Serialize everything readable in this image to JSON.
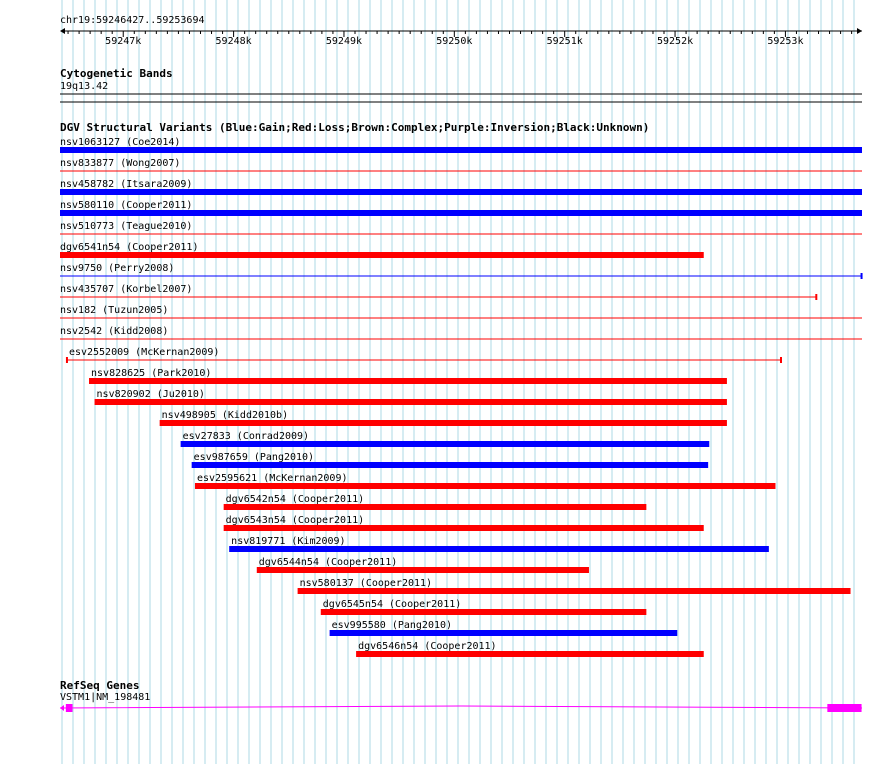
{
  "ruler": {
    "locus": "chr19:59246427..59253694",
    "start": 59246427,
    "end": 59253694,
    "ticks": [
      {
        "pos": 59247000,
        "label": "59247k"
      },
      {
        "pos": 59248000,
        "label": "59248k"
      },
      {
        "pos": 59249000,
        "label": "59249k"
      },
      {
        "pos": 59250000,
        "label": "59250k"
      },
      {
        "pos": 59251000,
        "label": "59251k"
      },
      {
        "pos": 59252000,
        "label": "59252k"
      },
      {
        "pos": 59253000,
        "label": "59253k"
      }
    ]
  },
  "colors": {
    "gain": "#0000ff",
    "loss": "#ff0000",
    "grid": "#add8e6",
    "gene": "#ff00ff",
    "band": "#000000"
  },
  "cytoband": {
    "title": "Cytogenetic Bands",
    "band": "19q13.42"
  },
  "dgv": {
    "title": "DGV Structural Variants (Blue:Gain;Red:Loss;Brown:Complex;Purple:Inversion;Black:Unknown)",
    "variants": [
      {
        "label": "nsv1063127 (Coe2014)",
        "type": "gain",
        "style": "thick",
        "start": 59246420,
        "end": 59253700
      },
      {
        "label": "nsv833877 (Wong2007)",
        "type": "loss",
        "style": "thin",
        "start": 59246420,
        "end": 59253700
      },
      {
        "label": "nsv458782 (Itsara2009)",
        "type": "gain",
        "style": "thick",
        "start": 59246420,
        "end": 59253700
      },
      {
        "label": "nsv580110 (Cooper2011)",
        "type": "gain",
        "style": "thick",
        "start": 59246420,
        "end": 59253700
      },
      {
        "label": "nsv510773 (Teague2010)",
        "type": "loss",
        "style": "thin",
        "start": 59246420,
        "end": 59253700
      },
      {
        "label": "dgv6541n54 (Cooper2011)",
        "type": "loss",
        "style": "thick",
        "start": 59246420,
        "end": 59252260
      },
      {
        "label": "nsv9750 (Perry2008)",
        "type": "gain",
        "style": "thin-end",
        "start": 59246420,
        "end": 59253690
      },
      {
        "label": "nsv435707 (Korbel2007)",
        "type": "loss",
        "style": "thin-end",
        "start": 59246420,
        "end": 59253280
      },
      {
        "label": "nsv182 (Tuzun2005)",
        "type": "loss",
        "style": "thin",
        "start": 59246420,
        "end": 59253700
      },
      {
        "label": "nsv2542 (Kidd2008)",
        "type": "loss",
        "style": "thin",
        "start": 59246420,
        "end": 59253700
      },
      {
        "label": "esv2552009 (McKernan2009)",
        "type": "loss",
        "style": "thin-both",
        "start": 59246490,
        "end": 59252960
      },
      {
        "label": "nsv828625 (Park2010)",
        "type": "loss",
        "style": "thick",
        "start": 59246690,
        "end": 59252470
      },
      {
        "label": "nsv820902 (Ju2010)",
        "type": "loss",
        "style": "thick",
        "start": 59246740,
        "end": 59252470
      },
      {
        "label": "nsv498905 (Kidd2010b)",
        "type": "loss",
        "style": "thick",
        "start": 59247330,
        "end": 59252470
      },
      {
        "label": "esv27833 (Conrad2009)",
        "type": "gain",
        "style": "thick",
        "start": 59247520,
        "end": 59252310
      },
      {
        "label": "esv987659 (Pang2010)",
        "type": "gain",
        "style": "thick",
        "start": 59247620,
        "end": 59252300
      },
      {
        "label": "esv2595621 (McKernan2009)",
        "type": "loss",
        "style": "thick",
        "start": 59247650,
        "end": 59252910
      },
      {
        "label": "dgv6542n54 (Cooper2011)",
        "type": "loss",
        "style": "thick",
        "start": 59247910,
        "end": 59251740
      },
      {
        "label": "dgv6543n54 (Cooper2011)",
        "type": "loss",
        "style": "thick",
        "start": 59247910,
        "end": 59252260
      },
      {
        "label": "nsv819771 (Kim2009)",
        "type": "gain",
        "style": "thick",
        "start": 59247960,
        "end": 59252850
      },
      {
        "label": "dgv6544n54 (Cooper2011)",
        "type": "loss",
        "style": "thick",
        "start": 59248210,
        "end": 59251220
      },
      {
        "label": "nsv580137 (Cooper2011)",
        "type": "loss",
        "style": "thick",
        "start": 59248580,
        "end": 59253590
      },
      {
        "label": "dgv6545n54 (Cooper2011)",
        "type": "loss",
        "style": "thick",
        "start": 59248790,
        "end": 59251740
      },
      {
        "label": "esv995580 (Pang2010)",
        "type": "gain",
        "style": "thick",
        "start": 59248870,
        "end": 59252020
      },
      {
        "label": "dgv6546n54 (Cooper2011)",
        "type": "loss",
        "style": "thick",
        "start": 59249110,
        "end": 59252260
      }
    ]
  },
  "refseq": {
    "title": "RefSeq Genes",
    "gene_label": "VSTM1|NM_198481",
    "exons": [
      {
        "start": 59246480,
        "end": 59246540
      },
      {
        "start": 59253380,
        "end": 59253690
      }
    ]
  }
}
